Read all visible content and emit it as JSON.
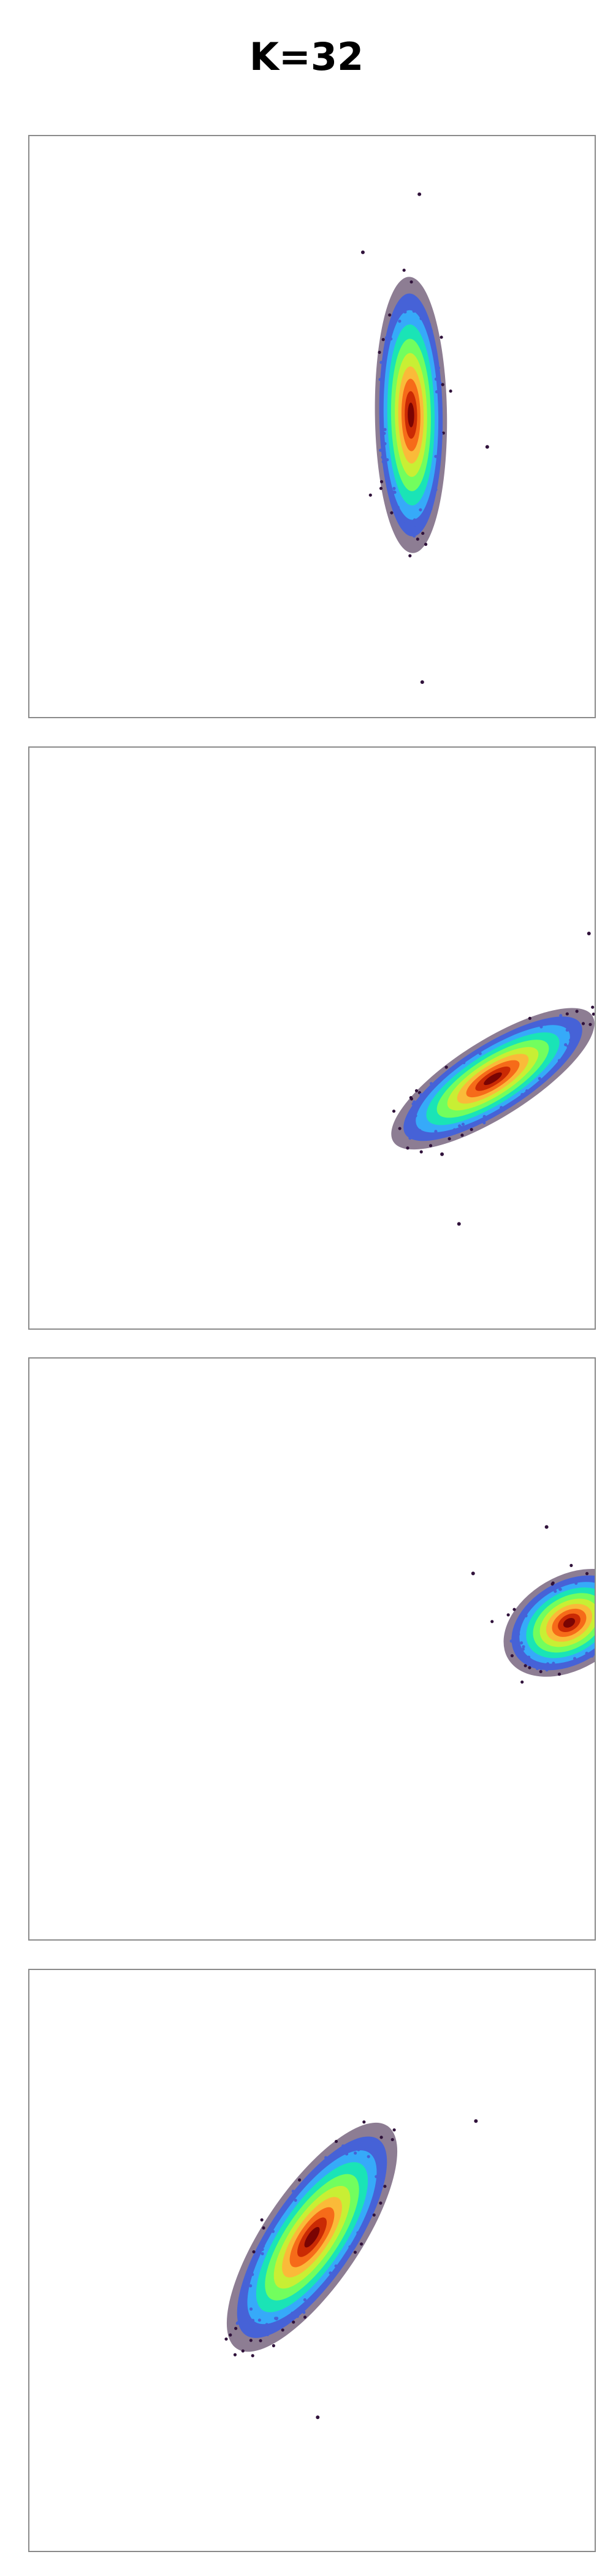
{
  "title": "K=32",
  "colors": {
    "frame": "#8a8a8a",
    "colormap": [
      "#30123b",
      "#4662d7",
      "#36aaf9",
      "#1ae4b6",
      "#72fe5e",
      "#c8ef34",
      "#faba39",
      "#f66b19",
      "#ca2a04",
      "#7a0403"
    ]
  },
  "chart_data": [
    {
      "type": "scatter",
      "density_colored": true,
      "title": "",
      "xlabel": "",
      "ylabel": "",
      "ticks_visible": false,
      "xlim": [
        0,
        1
      ],
      "ylim": [
        0,
        1
      ],
      "cluster": {
        "mean": [
          0.675,
          0.52
        ],
        "sd": [
          0.022,
          0.082
        ],
        "corr": -0.05
      },
      "outliers": [
        [
          0.69,
          0.9
        ],
        [
          0.81,
          0.465
        ],
        [
          0.695,
          0.06
        ],
        [
          0.59,
          0.8
        ]
      ]
    },
    {
      "type": "scatter",
      "density_colored": true,
      "title": "",
      "xlabel": "",
      "ylabel": "",
      "ticks_visible": false,
      "xlim": [
        0,
        1
      ],
      "ylim": [
        0,
        1
      ],
      "cluster": {
        "mean": [
          0.82,
          0.43
        ],
        "sd": [
          0.062,
          0.042
        ],
        "corr": 0.78
      },
      "outliers": [
        [
          0.76,
          0.18
        ],
        [
          0.99,
          0.68
        ],
        [
          0.73,
          0.3
        ]
      ]
    },
    {
      "type": "scatter",
      "density_colored": true,
      "title": "",
      "xlabel": "",
      "ylabel": "",
      "ticks_visible": false,
      "xlim": [
        0,
        1
      ],
      "ylim": [
        0,
        1
      ],
      "cluster": {
        "mean": [
          0.955,
          0.545
        ],
        "sd": [
          0.04,
          0.032
        ],
        "corr": 0.35
      },
      "outliers": [
        [
          0.785,
          0.63
        ],
        [
          0.915,
          0.71
        ]
      ]
    },
    {
      "type": "scatter",
      "density_colored": true,
      "title": "",
      "xlabel": "",
      "ylabel": "",
      "ticks_visible": false,
      "xlim": [
        0,
        1
      ],
      "ylim": [
        0,
        1
      ],
      "cluster": {
        "mean": [
          0.5,
          0.54
        ],
        "sd": [
          0.052,
          0.068
        ],
        "corr": 0.75
      },
      "outliers": [
        [
          0.79,
          0.74
        ],
        [
          0.51,
          0.23
        ]
      ]
    }
  ]
}
